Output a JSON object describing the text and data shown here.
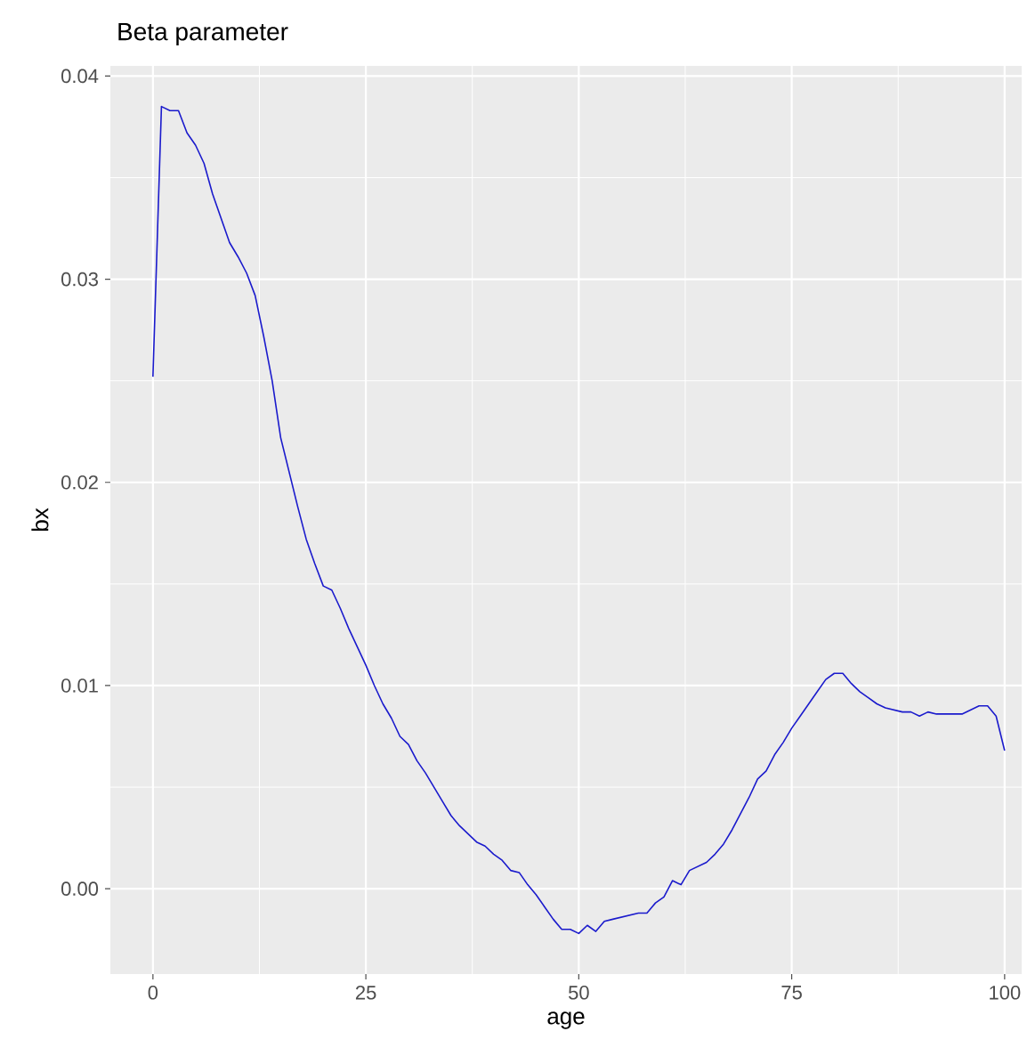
{
  "chart_data": {
    "type": "line",
    "title": "Beta parameter",
    "xlabel": "age",
    "ylabel": "bx",
    "x": [
      0,
      1,
      2,
      3,
      4,
      5,
      6,
      7,
      8,
      9,
      10,
      11,
      12,
      13,
      14,
      15,
      16,
      17,
      18,
      19,
      20,
      21,
      22,
      23,
      24,
      25,
      26,
      27,
      28,
      29,
      30,
      31,
      32,
      33,
      34,
      35,
      36,
      37,
      38,
      39,
      40,
      41,
      42,
      43,
      44,
      45,
      46,
      47,
      48,
      49,
      50,
      51,
      52,
      53,
      54,
      55,
      56,
      57,
      58,
      59,
      60,
      61,
      62,
      63,
      64,
      65,
      66,
      67,
      68,
      69,
      70,
      71,
      72,
      73,
      74,
      75,
      76,
      77,
      78,
      79,
      80,
      81,
      82,
      83,
      84,
      85,
      86,
      87,
      88,
      89,
      90,
      91,
      92,
      93,
      94,
      95,
      96,
      97,
      98,
      99,
      100
    ],
    "series": [
      {
        "color": "#1a1acc",
        "values": [
          0.0252,
          0.0385,
          0.0383,
          0.0383,
          0.0372,
          0.0366,
          0.0357,
          0.0342,
          0.033,
          0.0318,
          0.0311,
          0.0303,
          0.0292,
          0.0272,
          0.025,
          0.0222,
          0.0205,
          0.0188,
          0.0172,
          0.016,
          0.0149,
          0.0147,
          0.0138,
          0.0128,
          0.0119,
          0.011,
          0.01,
          0.0091,
          0.0084,
          0.0075,
          0.0071,
          0.0063,
          0.0057,
          0.005,
          0.0043,
          0.0036,
          0.0031,
          0.0027,
          0.0023,
          0.0021,
          0.0017,
          0.0014,
          0.0009,
          0.0008,
          0.0002,
          -0.0003,
          -0.0009,
          -0.0015,
          -0.002,
          -0.002,
          -0.0022,
          -0.0018,
          -0.0021,
          -0.0016,
          -0.0015,
          -0.0014,
          -0.0013,
          -0.0012,
          -0.0012,
          -0.0007,
          -0.0004,
          0.0004,
          0.0002,
          0.0009,
          0.0011,
          0.0013,
          0.0017,
          0.0022,
          0.0029,
          0.0037,
          0.0045,
          0.0054,
          0.0058,
          0.0066,
          0.0072,
          0.0079,
          0.0085,
          0.0091,
          0.0097,
          0.0103,
          0.0106,
          0.0106,
          0.0101,
          0.0097,
          0.0094,
          0.0091,
          0.0089,
          0.0088,
          0.0087,
          0.0087,
          0.0085,
          0.0087,
          0.0086,
          0.0086,
          0.0086,
          0.0086,
          0.0088,
          0.009,
          0.009,
          0.0085,
          0.0068
        ]
      }
    ],
    "xlim": [
      -5,
      102
    ],
    "ylim": [
      -0.0042,
      0.0405
    ],
    "xticks": [
      0,
      25,
      50,
      75,
      100
    ],
    "yticks": [
      {
        "value": 0,
        "label": "0.00"
      },
      {
        "value": 0.01,
        "label": "0.01"
      },
      {
        "value": 0.02,
        "label": "0.02"
      },
      {
        "value": 0.03,
        "label": "0.03"
      },
      {
        "value": 0.04,
        "label": "0.04"
      }
    ],
    "grid": true,
    "marker": "none",
    "line_style": "solid"
  }
}
